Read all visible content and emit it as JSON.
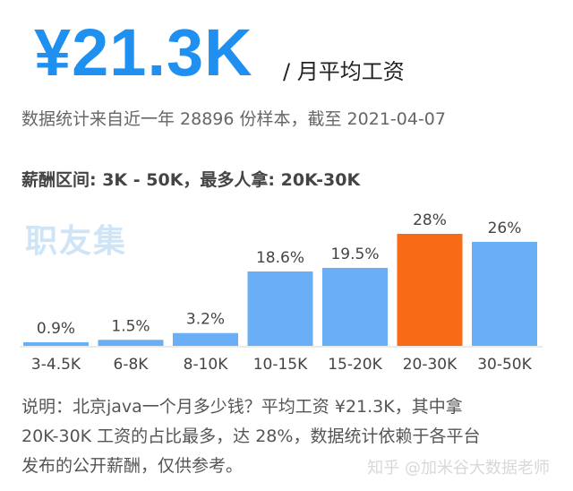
{
  "header": {
    "salary": "¥21.3K",
    "salary_unit": "/ 月平均工资",
    "stats": "数据统计来自近一年 28896 份样本，截至 2021-04-07",
    "range": "薪酬区间: 3K - 50K，最多人拿: 20K-30K"
  },
  "watermark": "职友集",
  "chart_data": {
    "type": "bar",
    "categories": [
      "3-4.5K",
      "6-8K",
      "8-10K",
      "10-15K",
      "15-20K",
      "20-30K",
      "30-50K"
    ],
    "values": [
      0.9,
      1.5,
      3.2,
      18.6,
      19.5,
      28,
      26
    ],
    "value_labels": [
      "0.9%",
      "1.5%",
      "3.2%",
      "18.6%",
      "19.5%",
      "28%",
      "26%"
    ],
    "unit": "%",
    "ylim": [
      0,
      28
    ],
    "highlight_index": 5,
    "grid": false,
    "colors": {
      "bar": "#6aaef5",
      "highlight": "#f96a17",
      "baseline": "#d6d6d6"
    }
  },
  "note": {
    "lines": [
      "说明：北京java一个月多少钱？平均工资 ¥21.3K，其中拿",
      "20K-30K 工资的占比最多，达 28%，数据统计依赖于各平台",
      "发布的公开薪酬，仅供参考。"
    ]
  },
  "credit": "知乎 @加米谷大数据老师"
}
